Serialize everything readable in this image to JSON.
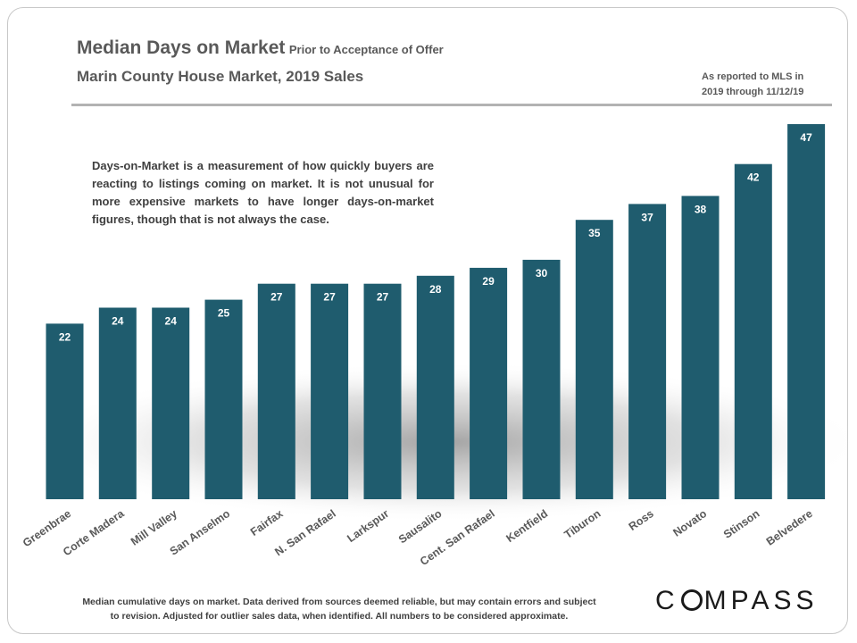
{
  "header": {
    "title": "Median Days on Market",
    "title_suffix": "Prior to Acceptance of Offer",
    "subtitle": "Marin County House Market, 2019 Sales",
    "reported_line1": "As reported to MLS in",
    "reported_line2": "2019 through 11/12/19"
  },
  "annotation": "Days-on-Market is a measurement of how quickly buyers are reacting to listings coming on market. It is not unusual for more expensive markets to have longer days-on-market figures, though that is not always the case.",
  "footnote": {
    "line1": "Median cumulative days on market. Data derived from sources deemed reliable, but may contain errors and subject",
    "line2": "to revision. Adjusted for outlier sales data, when identified. All numbers to be considered approximate."
  },
  "logo": {
    "before": "C",
    "after": "MPASS"
  },
  "colors": {
    "bar": "#1f5c6e",
    "text": "#595959"
  },
  "chart_data": {
    "type": "bar",
    "title": "Median Days on Market Prior to Acceptance of Offer",
    "subtitle": "Marin County House Market, 2019 Sales",
    "xlabel": "",
    "ylabel": "",
    "ylim": [
      0,
      50
    ],
    "grid": false,
    "categories": [
      "Greenbrae",
      "Corte Madera",
      "Mill Valley",
      "San Anselmo",
      "Fairfax",
      "N. San Rafael",
      "Larkspur",
      "Sausalito",
      "Cent. San Rafael",
      "Kentfield",
      "Tiburon",
      "Ross",
      "Novato",
      "Stinson",
      "Belvedere"
    ],
    "values": [
      22,
      24,
      24,
      25,
      27,
      27,
      27,
      28,
      29,
      30,
      35,
      37,
      38,
      42,
      47
    ]
  }
}
